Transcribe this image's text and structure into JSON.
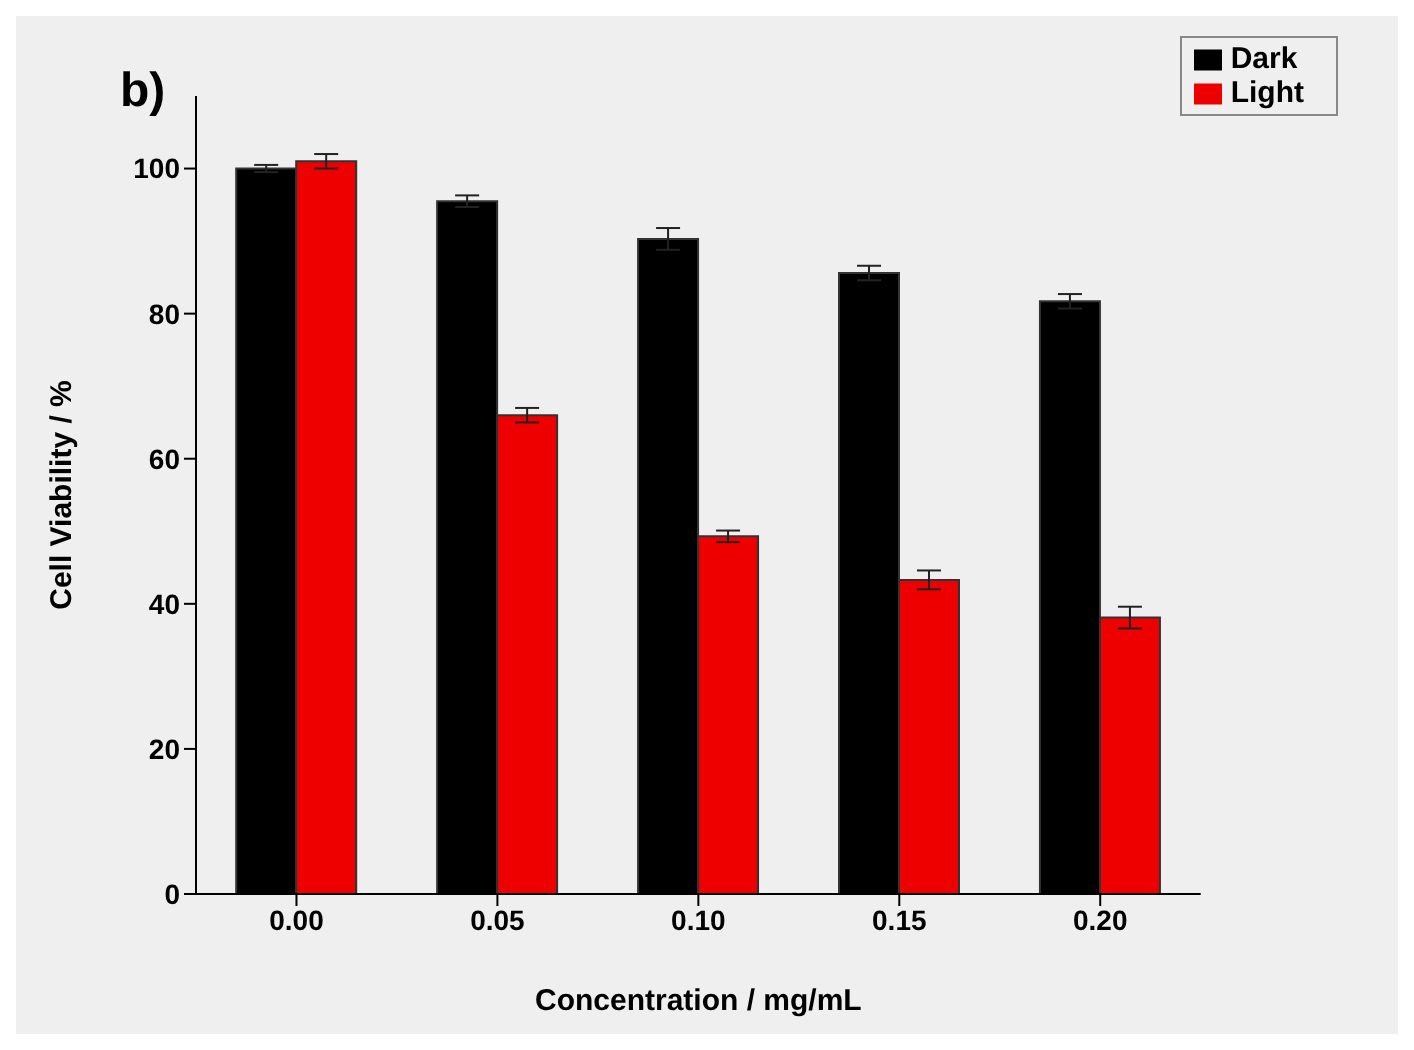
{
  "chart_data": {
    "type": "bar",
    "title": "b)",
    "xlabel": "Concentration / mg/mL",
    "ylabel": "Cell Viability / %",
    "categories": [
      "0.00",
      "0.05",
      "0.10",
      "0.15",
      "0.20"
    ],
    "series": [
      {
        "name": "Dark",
        "color": "#000000",
        "values": [
          100,
          95.5,
          90.3,
          85.6,
          81.7
        ],
        "errors": [
          0.5,
          0.8,
          1.5,
          1,
          1
        ]
      },
      {
        "name": "Light",
        "color": "#ee0000",
        "values": [
          101,
          66,
          49.3,
          43.3,
          38.1
        ],
        "errors": [
          1,
          1,
          0.8,
          1.3,
          1.5
        ]
      }
    ],
    "ylim": [
      0,
      110
    ],
    "yticks": [
      0,
      20,
      40,
      60,
      80,
      100
    ],
    "grid": false,
    "legend": "top right"
  }
}
